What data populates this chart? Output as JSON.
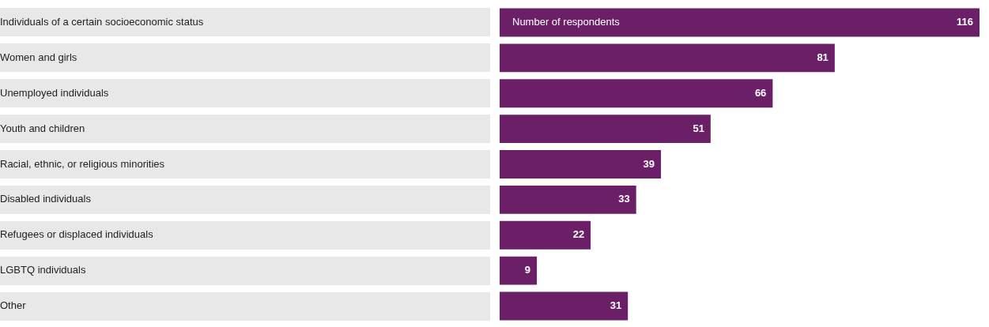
{
  "chart_data": {
    "type": "bar",
    "orientation": "horizontal",
    "xlabel": "Number of respondents",
    "categories": [
      "Individuals of a certain socioeconomic status",
      "Women and girls",
      "Unemployed individuals",
      "Youth and children",
      "Racial, ethnic, or religious minorities",
      "Disabled individuals",
      "Refugees or displaced individuals",
      "LGBTQ individuals",
      "Other"
    ],
    "values": [
      116,
      81,
      66,
      51,
      39,
      33,
      22,
      9,
      31
    ],
    "color": "#6b1f66",
    "xlim": [
      0,
      116
    ],
    "data_labels": true,
    "tick_labels": "y"
  }
}
